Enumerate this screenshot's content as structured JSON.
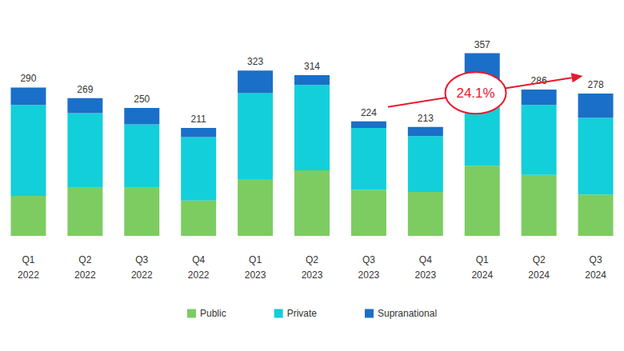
{
  "chart_data": {
    "type": "bar",
    "stacked": true,
    "categories": [
      "Q1\n2022",
      "Q2\n2022",
      "Q3\n2022",
      "Q4\n2022",
      "Q1\n2023",
      "Q2\n2023",
      "Q3\n2023",
      "Q4\n2023",
      "Q1\n2024",
      "Q2\n2024",
      "Q3\n2024"
    ],
    "series": [
      {
        "name": "Public",
        "color": "#7ccc62",
        "values": [
          78,
          94,
          94,
          69,
          111,
          128,
          90,
          86,
          137,
          119,
          81
        ]
      },
      {
        "name": "Private",
        "color": "#12cfd9",
        "values": [
          178,
          146,
          124,
          124,
          168,
          167,
          121,
          109,
          167,
          137,
          150
        ]
      },
      {
        "name": "Supranational",
        "color": "#1a6fc8",
        "values": [
          34,
          29,
          32,
          18,
          44,
          19,
          13,
          18,
          53,
          30,
          47
        ]
      }
    ],
    "totals": [
      290,
      269,
      250,
      211,
      323,
      314,
      224,
      213,
      357,
      286,
      278
    ],
    "annotations": [
      {
        "text": "24.1%",
        "from": "Q3\n2023",
        "to": "Q3\n2024",
        "color": "#e8192c"
      }
    ],
    "ylim": [
      0,
      400
    ],
    "yticks": [
      0,
      400
    ],
    "grid": false,
    "legend": "bottom",
    "tick_labels": "x"
  }
}
